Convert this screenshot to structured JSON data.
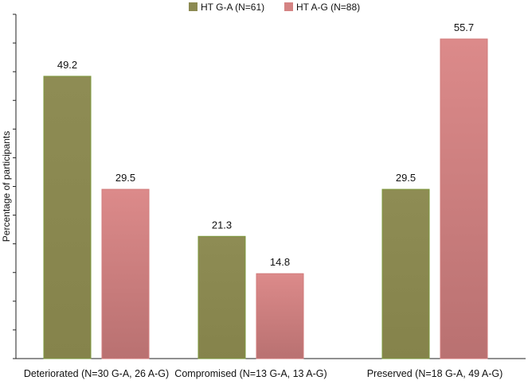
{
  "chart_data": {
    "type": "bar",
    "title": "",
    "xlabel": "",
    "ylabel": "Percentage of participants",
    "ylim": [
      0,
      60
    ],
    "grid": false,
    "legend_position": "top-center",
    "categories": [
      "Deteriorated (N=30 G-A, 26 A-G)",
      "Compromised (N=13 G-A, 13 A-G)",
      "Preserved (N=18 G-A, 49 A-G)"
    ],
    "series": [
      {
        "name": "HT G-A (N=61)",
        "color": "#8c8a52",
        "values": [
          49.2,
          21.3,
          29.5
        ],
        "labels": [
          "49.2",
          "21.3",
          "29.5"
        ]
      },
      {
        "name": "HT A-G (N=88)",
        "color": "#d48383",
        "values": [
          29.5,
          14.8,
          55.7
        ],
        "labels": [
          "29.5",
          "14.8",
          "55.7"
        ]
      }
    ]
  }
}
